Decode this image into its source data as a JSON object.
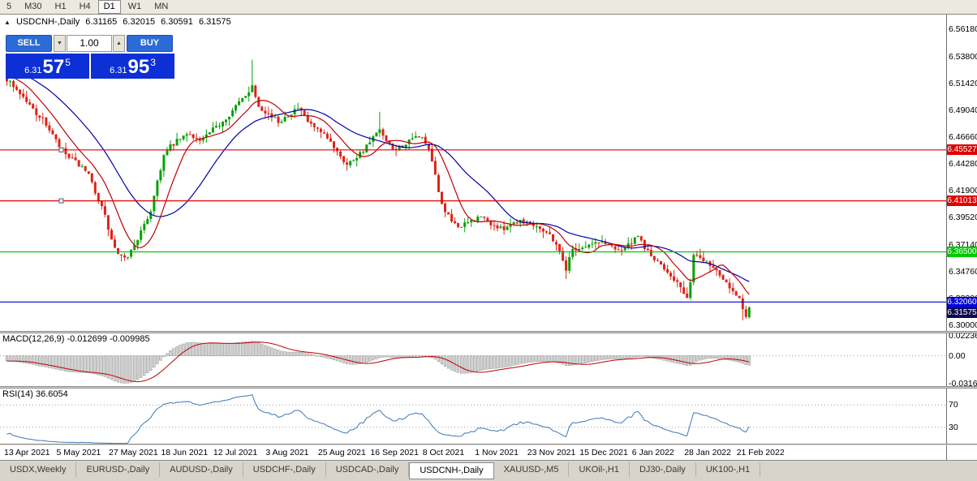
{
  "toolbar": {
    "timeframes": [
      {
        "label": "5",
        "active": false
      },
      {
        "label": "M30",
        "active": false
      },
      {
        "label": "H1",
        "active": false
      },
      {
        "label": "H4",
        "active": false
      },
      {
        "label": "D1",
        "active": true
      },
      {
        "label": "W1",
        "active": false
      },
      {
        "label": "MN",
        "active": false
      }
    ]
  },
  "chart": {
    "collapse_arrow": "▲",
    "symbol_label": "USDCNH-,Daily",
    "ohlc": {
      "open": "6.31165",
      "high": "6.32015",
      "low": "6.30591",
      "close": "6.31575"
    },
    "trade_panel": {
      "sell_label": "SELL",
      "buy_label": "BUY",
      "volume": "1.00",
      "spin_down": "▼",
      "spin_up": "▲",
      "bid": {
        "prefix": "6.31",
        "big": "57",
        "sup": "5"
      },
      "ask": {
        "prefix": "6.31",
        "big": "95",
        "sup": "3"
      }
    },
    "y_axis": [
      "6.56180",
      "6.53800",
      "6.51420",
      "6.49040",
      "6.46660",
      "6.44280",
      "6.41900",
      "6.39520",
      "6.37140",
      "6.34760",
      "6.32380",
      "6.30000"
    ],
    "x_axis": [
      "13 Apr 2021",
      "5 May 2021",
      "27 May 2021",
      "18 Jun 2021",
      "12 Jul 2021",
      "3 Aug 2021",
      "25 Aug 2021",
      "16 Sep 2021",
      "8 Oct 2021",
      "1 Nov 2021",
      "23 Nov 2021",
      "15 Dec 2021",
      "6 Jan 2022",
      "28 Jan 2022",
      "21 Feb 2022"
    ],
    "hlines": [
      {
        "label": "6.45527",
        "value": 6.45527,
        "color": "#e00000"
      },
      {
        "label": "6.41013",
        "value": 6.41013,
        "color": "#e00000"
      },
      {
        "label": "6.36500",
        "value": 6.365,
        "color": "#00c800"
      },
      {
        "label": "6.32060",
        "value": 6.3206,
        "color": "#0000d8"
      }
    ],
    "current_price": {
      "label": "6.31575",
      "value": 6.31575,
      "bg": "#0a0a50"
    }
  },
  "macd": {
    "label": "MACD(12,26,9) -0.012699 -0.009985",
    "params": {
      "fast": 12,
      "slow": 26,
      "signal": 9
    },
    "values": {
      "main": -0.012699,
      "signal": -0.009985
    },
    "axis": [
      {
        "label": "0.02236",
        "value": 0.02236
      },
      {
        "label": "0.00",
        "value": 0
      },
      {
        "label": "-0.03169",
        "value": -0.03169
      }
    ]
  },
  "rsi": {
    "label": "RSI(14) 36.6054",
    "period": 14,
    "value": 36.6054,
    "levels": [
      70,
      30
    ],
    "axis": [
      {
        "label": "70",
        "value": 70
      },
      {
        "label": "30",
        "value": 30
      }
    ]
  },
  "tabs": [
    {
      "label": "USDX,Weekly",
      "active": false
    },
    {
      "label": "EURUSD-,Daily",
      "active": false
    },
    {
      "label": "AUDUSD-,Daily",
      "active": false
    },
    {
      "label": "USDCHF-,Daily",
      "active": false
    },
    {
      "label": "USDCAD-,Daily",
      "active": false
    },
    {
      "label": "USDCNH-,Daily",
      "active": true
    },
    {
      "label": "XAUUSD-,M5",
      "active": false
    },
    {
      "label": "UKOil-,H1",
      "active": false
    },
    {
      "label": "DJ30-,Daily",
      "active": false
    },
    {
      "label": "UK100-,H1",
      "active": false
    }
  ],
  "chart_data": {
    "type": "candlestick",
    "symbol": "USDCNH-",
    "timeframe": "Daily",
    "candle_count": 228,
    "warmup": 40,
    "price_range": [
      6.295,
      6.575
    ],
    "last_close": 6.31575,
    "anchors": [
      [
        -40,
        6.558
      ],
      [
        -30,
        6.545
      ],
      [
        -20,
        6.535
      ],
      [
        -10,
        6.526
      ],
      [
        -1,
        6.52
      ],
      [
        0,
        6.518
      ],
      [
        3,
        6.509
      ],
      [
        6,
        6.498
      ],
      [
        9,
        6.488
      ],
      [
        12,
        6.478
      ],
      [
        16,
        6.458
      ],
      [
        19,
        6.448
      ],
      [
        22,
        6.442
      ],
      [
        25,
        6.432
      ],
      [
        28,
        6.412
      ],
      [
        30,
        6.396
      ],
      [
        32,
        6.375
      ],
      [
        34,
        6.362
      ],
      [
        36,
        6.358
      ],
      [
        38,
        6.366
      ],
      [
        40,
        6.377
      ],
      [
        42,
        6.388
      ],
      [
        44,
        6.402
      ],
      [
        46,
        6.428
      ],
      [
        48,
        6.45
      ],
      [
        50,
        6.458
      ],
      [
        53,
        6.465
      ],
      [
        56,
        6.47
      ],
      [
        59,
        6.463
      ],
      [
        62,
        6.47
      ],
      [
        65,
        6.478
      ],
      [
        68,
        6.487
      ],
      [
        71,
        6.497
      ],
      [
        74,
        6.508
      ],
      [
        75,
        6.512
      ],
      [
        77,
        6.495
      ],
      [
        80,
        6.487
      ],
      [
        83,
        6.48
      ],
      [
        86,
        6.487
      ],
      [
        89,
        6.492
      ],
      [
        92,
        6.48
      ],
      [
        95,
        6.472
      ],
      [
        98,
        6.465
      ],
      [
        101,
        6.455
      ],
      [
        104,
        6.442
      ],
      [
        107,
        6.45
      ],
      [
        110,
        6.458
      ],
      [
        112,
        6.466
      ],
      [
        114,
        6.472
      ],
      [
        116,
        6.462
      ],
      [
        118,
        6.455
      ],
      [
        121,
        6.459
      ],
      [
        124,
        6.464
      ],
      [
        126,
        6.468
      ],
      [
        128,
        6.462
      ],
      [
        130,
        6.445
      ],
      [
        132,
        6.418
      ],
      [
        134,
        6.4
      ],
      [
        136,
        6.392
      ],
      [
        139,
        6.387
      ],
      [
        142,
        6.392
      ],
      [
        145,
        6.396
      ],
      [
        148,
        6.39
      ],
      [
        151,
        6.385
      ],
      [
        154,
        6.39
      ],
      [
        157,
        6.393
      ],
      [
        160,
        6.391
      ],
      [
        163,
        6.387
      ],
      [
        166,
        6.38
      ],
      [
        168,
        6.372
      ],
      [
        170,
        6.358
      ],
      [
        171,
        6.35
      ],
      [
        173,
        6.368
      ],
      [
        176,
        6.369
      ],
      [
        179,
        6.372
      ],
      [
        182,
        6.374
      ],
      [
        185,
        6.37
      ],
      [
        188,
        6.367
      ],
      [
        191,
        6.373
      ],
      [
        193,
        6.378
      ],
      [
        196,
        6.365
      ],
      [
        199,
        6.355
      ],
      [
        202,
        6.348
      ],
      [
        205,
        6.338
      ],
      [
        207,
        6.327
      ],
      [
        208,
        6.322
      ],
      [
        209,
        6.34
      ],
      [
        210,
        6.362
      ],
      [
        212,
        6.36
      ],
      [
        214,
        6.357
      ],
      [
        216,
        6.351
      ],
      [
        218,
        6.346
      ],
      [
        220,
        6.339
      ],
      [
        222,
        6.331
      ],
      [
        224,
        6.324
      ],
      [
        225,
        6.313
      ],
      [
        226,
        6.307
      ],
      [
        227,
        6.3158
      ]
    ],
    "wick_marks": [
      {
        "i": 75,
        "high": 6.535
      },
      {
        "i": 114,
        "high": 6.489
      },
      {
        "i": 171,
        "low": 6.341
      },
      {
        "i": 225,
        "low": 6.3045
      }
    ],
    "indicators": {
      "ma_fast": {
        "period": 10,
        "color": "#c00000"
      },
      "ma_slow": {
        "period": 25,
        "color": "#0000a8"
      }
    },
    "colors": {
      "up": "#0aa00a",
      "down": "#dc2418",
      "macd_hist_fill": "#d4d4d4",
      "macd_hist_border": "#909090",
      "macd_signal": "#c00000",
      "rsi_line": "#3c78b4",
      "level_dotted": "#a0a0a0"
    }
  }
}
